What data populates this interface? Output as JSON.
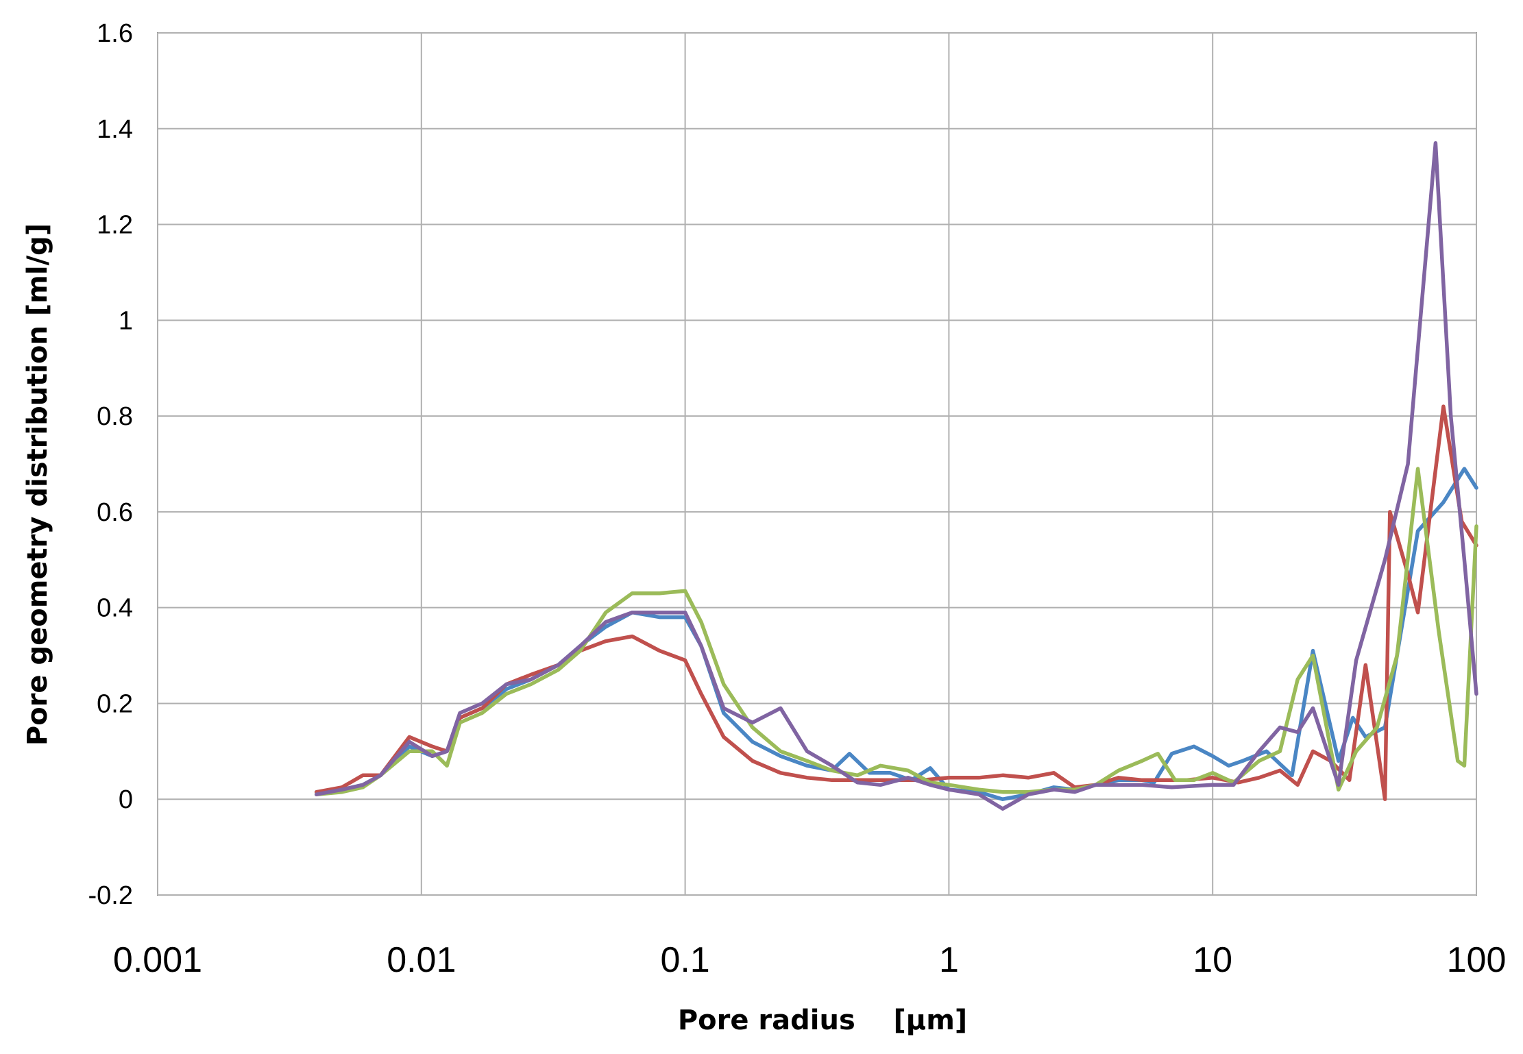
{
  "chart_data": {
    "type": "line",
    "title": "",
    "xlabel": "Pore radius    [µm]",
    "ylabel": "Pore geometry distribution [ml/g]",
    "x_scale": "log",
    "xlim": [
      0.001,
      100
    ],
    "ylim": [
      -0.2,
      1.6
    ],
    "grid": true,
    "legend": "none",
    "x_ticks": [
      "0.001",
      "0.01",
      "0.1",
      "1",
      "10",
      "100"
    ],
    "x_tick_values": [
      0.001,
      0.01,
      0.1,
      1,
      10,
      100
    ],
    "y_ticks": [
      "1.6",
      "1.4",
      "1.2",
      "1",
      "0.8",
      "0.6",
      "0.4",
      "0.2",
      "0",
      "-0.2"
    ],
    "y_tick_values": [
      1.6,
      1.4,
      1.2,
      1,
      0.8,
      0.6,
      0.4,
      0.2,
      0,
      -0.2
    ],
    "series": [
      {
        "color": "#4a86c4",
        "x": [
          0.004,
          0.005,
          0.006,
          0.007,
          0.009,
          0.011,
          0.0125,
          0.014,
          0.017,
          0.021,
          0.026,
          0.033,
          0.04,
          0.05,
          0.063,
          0.08,
          0.1,
          0.115,
          0.14,
          0.18,
          0.23,
          0.29,
          0.36,
          0.42,
          0.5,
          0.6,
          0.72,
          0.85,
          1.0,
          1.3,
          1.6,
          2.0,
          2.5,
          3.0,
          3.6,
          4.4,
          5.4,
          6.0,
          7.0,
          8.5,
          10,
          11.5,
          13,
          16,
          20,
          24,
          30,
          34,
          38,
          45,
          60,
          75,
          90,
          100
        ],
        "values": [
          0.015,
          0.02,
          0.03,
          0.05,
          0.11,
          0.09,
          0.1,
          0.17,
          0.19,
          0.23,
          0.25,
          0.28,
          0.32,
          0.36,
          0.39,
          0.38,
          0.38,
          0.32,
          0.18,
          0.12,
          0.09,
          0.07,
          0.06,
          0.095,
          0.055,
          0.055,
          0.04,
          0.065,
          0.02,
          0.015,
          0.0,
          0.01,
          0.025,
          0.02,
          0.03,
          0.04,
          0.04,
          0.035,
          0.095,
          0.11,
          0.09,
          0.07,
          0.08,
          0.1,
          0.05,
          0.31,
          0.08,
          0.17,
          0.13,
          0.15,
          0.56,
          0.62,
          0.69,
          0.65
        ]
      },
      {
        "color": "#c0504d",
        "x": [
          0.004,
          0.005,
          0.006,
          0.007,
          0.009,
          0.011,
          0.0125,
          0.014,
          0.017,
          0.021,
          0.026,
          0.033,
          0.04,
          0.05,
          0.063,
          0.08,
          0.1,
          0.115,
          0.14,
          0.18,
          0.23,
          0.29,
          0.36,
          0.45,
          0.6,
          0.8,
          1.0,
          1.3,
          1.6,
          2.0,
          2.5,
          3.0,
          3.6,
          4.4,
          5.4,
          6.5,
          8.0,
          10,
          12.5,
          15,
          18,
          21,
          24,
          28,
          33,
          38,
          45,
          47,
          55,
          60,
          75,
          88,
          100
        ],
        "values": [
          0.015,
          0.025,
          0.05,
          0.05,
          0.13,
          0.11,
          0.1,
          0.17,
          0.19,
          0.24,
          0.26,
          0.28,
          0.31,
          0.33,
          0.34,
          0.31,
          0.29,
          0.22,
          0.13,
          0.08,
          0.055,
          0.045,
          0.04,
          0.04,
          0.04,
          0.04,
          0.045,
          0.045,
          0.05,
          0.045,
          0.055,
          0.025,
          0.03,
          0.045,
          0.04,
          0.04,
          0.04,
          0.045,
          0.035,
          0.045,
          0.06,
          0.03,
          0.1,
          0.08,
          0.04,
          0.28,
          0.0,
          0.6,
          0.47,
          0.39,
          0.82,
          0.58,
          0.53
        ]
      },
      {
        "color": "#9bbb59",
        "x": [
          0.004,
          0.005,
          0.006,
          0.007,
          0.009,
          0.011,
          0.0125,
          0.014,
          0.017,
          0.021,
          0.026,
          0.033,
          0.04,
          0.05,
          0.063,
          0.08,
          0.1,
          0.115,
          0.14,
          0.18,
          0.23,
          0.29,
          0.36,
          0.45,
          0.55,
          0.7,
          0.85,
          1.0,
          1.3,
          1.6,
          2.0,
          2.5,
          3.0,
          3.6,
          4.4,
          5.4,
          6.2,
          7.2,
          8.5,
          10,
          12,
          15,
          18,
          21,
          24,
          30,
          35,
          42,
          50,
          60,
          72,
          85,
          90,
          100
        ],
        "values": [
          0.01,
          0.015,
          0.025,
          0.05,
          0.1,
          0.1,
          0.07,
          0.16,
          0.18,
          0.22,
          0.24,
          0.27,
          0.31,
          0.39,
          0.43,
          0.43,
          0.435,
          0.37,
          0.24,
          0.15,
          0.1,
          0.08,
          0.06,
          0.05,
          0.07,
          0.06,
          0.035,
          0.03,
          0.02,
          0.015,
          0.015,
          0.02,
          0.02,
          0.03,
          0.06,
          0.08,
          0.095,
          0.04,
          0.04,
          0.055,
          0.035,
          0.08,
          0.1,
          0.25,
          0.3,
          0.02,
          0.1,
          0.15,
          0.3,
          0.69,
          0.35,
          0.08,
          0.07,
          0.57
        ]
      },
      {
        "color": "#8064a2",
        "x": [
          0.004,
          0.005,
          0.006,
          0.007,
          0.009,
          0.011,
          0.0125,
          0.014,
          0.017,
          0.021,
          0.026,
          0.033,
          0.04,
          0.05,
          0.063,
          0.08,
          0.1,
          0.115,
          0.14,
          0.18,
          0.23,
          0.29,
          0.36,
          0.45,
          0.55,
          0.7,
          0.85,
          1.0,
          1.3,
          1.6,
          2.0,
          2.5,
          3.0,
          3.6,
          4.4,
          5.4,
          7.0,
          10,
          12,
          15,
          18,
          21,
          24,
          30,
          35,
          45,
          55,
          70,
          80,
          90,
          100
        ],
        "values": [
          0.01,
          0.02,
          0.03,
          0.05,
          0.12,
          0.09,
          0.1,
          0.18,
          0.2,
          0.24,
          0.25,
          0.28,
          0.32,
          0.37,
          0.39,
          0.39,
          0.39,
          0.32,
          0.19,
          0.16,
          0.19,
          0.1,
          0.07,
          0.035,
          0.03,
          0.045,
          0.03,
          0.02,
          0.01,
          -0.02,
          0.01,
          0.02,
          0.015,
          0.03,
          0.03,
          0.03,
          0.025,
          0.03,
          0.03,
          0.1,
          0.15,
          0.14,
          0.19,
          0.03,
          0.29,
          0.5,
          0.7,
          1.37,
          0.8,
          0.5,
          0.22
        ]
      }
    ]
  }
}
